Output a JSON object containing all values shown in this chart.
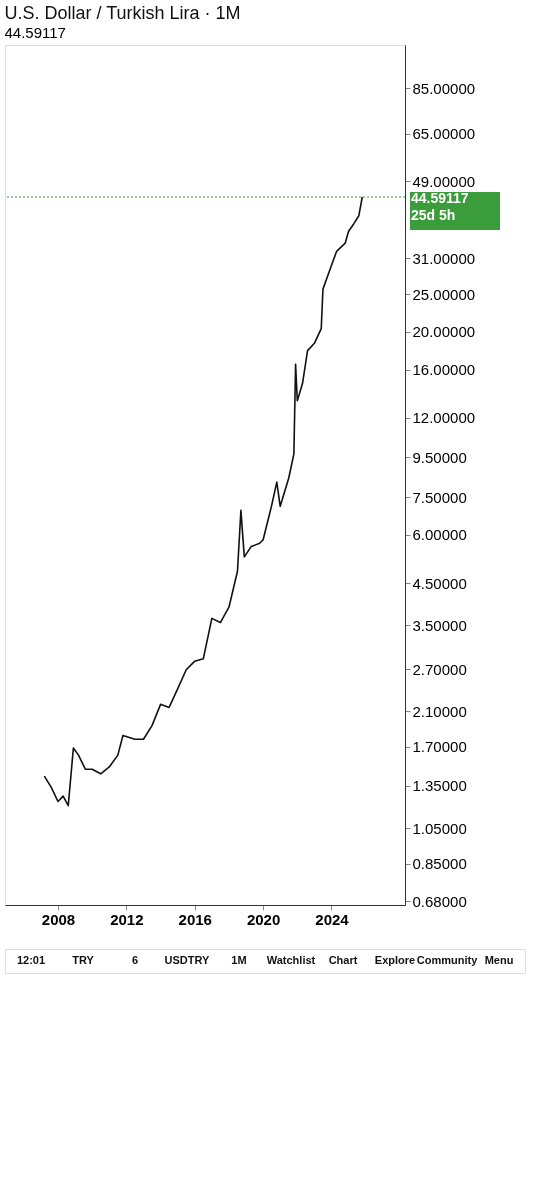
{
  "chart_data": {
    "type": "line",
    "title": "U.S. Dollar / Turkish Lira · 1M",
    "subtitle": "44.59117",
    "x": [
      2007.2,
      2007.6,
      2008.0,
      2008.3,
      2008.6,
      2008.9,
      2009.2,
      2009.6,
      2010.0,
      2010.5,
      2011.0,
      2011.5,
      2011.8,
      2012.5,
      2013.0,
      2013.5,
      2014.0,
      2014.5,
      2015.0,
      2015.5,
      2016.0,
      2016.5,
      2017.0,
      2017.5,
      2018.0,
      2018.5,
      2018.7,
      2018.9,
      2019.3,
      2019.8,
      2020.0,
      2020.5,
      2020.8,
      2021.0,
      2021.5,
      2021.8,
      2021.9,
      2022.0,
      2022.3,
      2022.6,
      2023.0,
      2023.4,
      2023.5,
      2023.9,
      2024.3,
      2024.8,
      2025.0,
      2025.3,
      2025.6,
      2025.8
    ],
    "series": [
      {
        "color": "#111111",
        "values": [
          1.43,
          1.34,
          1.23,
          1.27,
          1.2,
          1.69,
          1.62,
          1.49,
          1.49,
          1.45,
          1.51,
          1.62,
          1.82,
          1.78,
          1.78,
          1.93,
          2.19,
          2.15,
          2.4,
          2.69,
          2.83,
          2.87,
          3.65,
          3.56,
          3.9,
          4.83,
          6.93,
          5.26,
          5.59,
          5.7,
          5.82,
          7.14,
          8.2,
          7.1,
          8.4,
          9.7,
          16.5,
          13.3,
          14.7,
          17.9,
          18.7,
          20.4,
          25.8,
          28.9,
          32.3,
          33.9,
          36.4,
          38.0,
          39.9,
          44.59117
        ]
      }
    ],
    "xlim": [
      2004.9,
      2028.3
    ],
    "xticks": [
      2008,
      2012,
      2016,
      2020,
      2024
    ],
    "ylim": [
      0.665,
      110
    ],
    "log": true,
    "yticks": [
      {
        "value": 0.68,
        "label": "0.68000"
      },
      {
        "value": 0.85,
        "label": "0.85000"
      },
      {
        "value": 1.05,
        "label": "1.05000"
      },
      {
        "value": 1.35,
        "label": "1.35000"
      },
      {
        "value": 1.7,
        "label": "1.70000"
      },
      {
        "value": 2.1,
        "label": "2.10000"
      },
      {
        "value": 2.7,
        "label": "2.70000"
      },
      {
        "value": 3.5,
        "label": "3.50000"
      },
      {
        "value": 4.5,
        "label": "4.50000"
      },
      {
        "value": 6,
        "label": "6.00000"
      },
      {
        "value": 7.5,
        "label": "7.50000"
      },
      {
        "value": 9.5,
        "label": "9.50000"
      },
      {
        "value": 12,
        "label": "12.00000"
      },
      {
        "value": 16,
        "label": "16.00000"
      },
      {
        "value": 20,
        "label": "20.00000"
      },
      {
        "value": 25,
        "label": "25.00000"
      },
      {
        "value": 31,
        "label": "31.00000"
      },
      {
        "value": 49,
        "label": "49.00000"
      },
      {
        "value": 65,
        "label": "65.00000"
      },
      {
        "value": 85,
        "label": "85.00000"
      }
    ],
    "ref_lines": [
      {
        "axis": "y",
        "value": 44.59117,
        "label": "44.59117 25d 5h",
        "color": "#3a9c3a",
        "line_style": "dotted"
      }
    ],
    "grid": false,
    "annotations": [
      "12:01",
      "TRY",
      "6",
      "USDTRY",
      "1M",
      "Watchlist",
      "Chart",
      "Explore",
      "Community",
      "Menu"
    ]
  }
}
